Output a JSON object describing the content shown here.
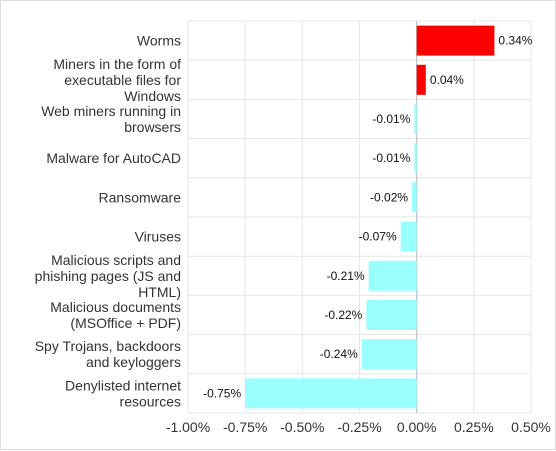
{
  "chart_data": {
    "type": "bar",
    "orientation": "horizontal",
    "categories": [
      [
        "Worms"
      ],
      [
        "Miners in the form of",
        "executable files for",
        "Windows"
      ],
      [
        "Web miners running in",
        "browsers"
      ],
      [
        "Malware for AutoCAD"
      ],
      [
        "Ransomware"
      ],
      [
        "Viruses"
      ],
      [
        "Malicious scripts and",
        "phishing pages (JS and",
        "HTML)"
      ],
      [
        "Malicious documents",
        "(MSOffice + PDF)"
      ],
      [
        "Spy Trojans, backdoors",
        "and keyloggers"
      ],
      [
        "Denylisted internet",
        "resources"
      ]
    ],
    "values": [
      0.34,
      0.04,
      -0.01,
      -0.01,
      -0.02,
      -0.07,
      -0.21,
      -0.22,
      -0.24,
      -0.75
    ],
    "value_labels": [
      "0.34%",
      "0.04%",
      "-0.01%",
      "-0.01%",
      "-0.02%",
      "-0.07%",
      "-0.21%",
      "-0.22%",
      "-0.24%",
      "-0.75%"
    ],
    "xlim": [
      -1.0,
      0.5
    ],
    "x_ticks": [
      -1.0,
      -0.75,
      -0.5,
      -0.25,
      0.0,
      0.25,
      0.5
    ],
    "x_tick_labels": [
      "-1.00%",
      "-0.75%",
      "-0.50%",
      "-0.25%",
      "0.00%",
      "0.25%",
      "0.50%"
    ],
    "grid": true,
    "legend": false,
    "colors": {
      "positive": "#ff0000",
      "negative": "#99ffff"
    }
  }
}
